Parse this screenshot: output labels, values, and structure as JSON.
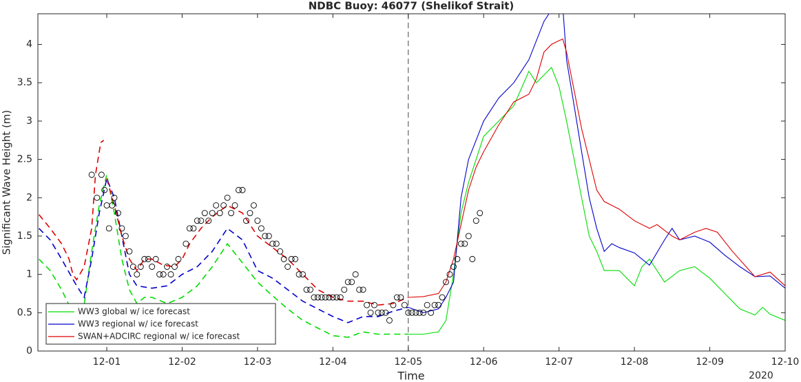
{
  "chart_data": {
    "type": "line",
    "title": "NDBC Buoy: 46077 (Shelikof Strait)",
    "x_label": "Time",
    "y_label": "Significant Wave Height (m)",
    "year_label": "2020",
    "xlim": [
      -0.914,
      9
    ],
    "ylim": [
      0,
      4.4
    ],
    "xticks": [
      {
        "value": 0,
        "label": "12-01"
      },
      {
        "value": 1,
        "label": "12-02"
      },
      {
        "value": 2,
        "label": "12-03"
      },
      {
        "value": 3,
        "label": "12-04"
      },
      {
        "value": 4,
        "label": "12-05"
      },
      {
        "value": 5,
        "label": "12-06"
      },
      {
        "value": 6,
        "label": "12-07"
      },
      {
        "value": 7,
        "label": "12-08"
      },
      {
        "value": 8,
        "label": "12-09"
      },
      {
        "value": 9,
        "label": "12-10"
      }
    ],
    "yticks": [
      0,
      0.5,
      1,
      1.5,
      2,
      2.5,
      3,
      3.5,
      4
    ],
    "vline": 4,
    "legend": "lower left",
    "series": [
      {
        "name": "WW3 global w/ ice forecast",
        "color": "#00dd00",
        "x": [
          -0.9,
          -0.75,
          -0.6,
          -0.5,
          -0.3,
          -0.2,
          -0.1,
          0.0,
          0.1,
          0.2,
          0.3,
          0.4,
          0.5,
          0.6,
          0.8,
          1.0,
          1.2,
          1.4,
          1.6,
          1.8,
          2.0,
          2.2,
          2.4,
          2.6,
          2.8,
          3.0,
          3.2,
          3.4,
          3.6,
          3.8,
          4.0,
          4.2,
          4.4,
          4.5,
          4.6,
          4.7,
          4.8,
          5.0,
          5.2,
          5.4,
          5.6,
          5.7,
          5.9,
          6.0,
          6.1,
          6.2,
          6.3,
          6.4,
          6.5,
          6.6,
          6.8,
          7.0,
          7.1,
          7.2,
          7.4,
          7.6,
          7.8,
          8.0,
          8.2,
          8.4,
          8.6,
          8.7,
          8.8,
          9.0
        ],
        "values": [
          1.2,
          1.05,
          0.8,
          0.6,
          0.6,
          1.3,
          1.9,
          2.3,
          1.8,
          1.2,
          0.8,
          0.62,
          0.7,
          0.7,
          0.62,
          0.7,
          0.85,
          1.1,
          1.4,
          1.15,
          0.9,
          0.72,
          0.55,
          0.4,
          0.3,
          0.2,
          0.18,
          0.25,
          0.22,
          0.22,
          0.22,
          0.22,
          0.25,
          0.4,
          1.0,
          1.8,
          2.2,
          2.8,
          3.0,
          3.2,
          3.65,
          3.5,
          3.7,
          3.45,
          3.0,
          2.5,
          2.0,
          1.5,
          1.3,
          1.05,
          1.05,
          0.85,
          1.1,
          1.2,
          0.9,
          1.05,
          1.1,
          0.95,
          0.75,
          0.55,
          0.47,
          0.57,
          0.48,
          0.4
        ]
      },
      {
        "name": "WW3 regional w/ ice forecast",
        "color": "#0000cc",
        "x": [
          -0.9,
          -0.75,
          -0.6,
          -0.4,
          -0.3,
          -0.2,
          -0.1,
          0.0,
          0.1,
          0.2,
          0.3,
          0.4,
          0.6,
          0.8,
          1.0,
          1.2,
          1.4,
          1.6,
          1.8,
          2.0,
          2.2,
          2.4,
          2.6,
          2.8,
          3.0,
          3.2,
          3.4,
          3.6,
          3.8,
          4.0,
          4.2,
          4.4,
          4.5,
          4.6,
          4.7,
          4.8,
          5.0,
          5.2,
          5.4,
          5.6,
          5.8,
          6.0,
          6.05,
          6.1,
          6.2,
          6.3,
          6.4,
          6.5,
          6.6,
          6.7,
          6.8,
          7.0,
          7.2,
          7.4,
          7.5,
          7.6,
          7.8,
          8.0,
          8.2,
          8.4,
          8.6,
          8.8,
          9.0
        ],
        "values": [
          1.6,
          1.45,
          1.2,
          0.85,
          0.7,
          1.2,
          1.8,
          2.25,
          2.0,
          1.5,
          1.0,
          0.85,
          0.82,
          0.85,
          1.0,
          1.1,
          1.3,
          1.6,
          1.45,
          1.05,
          0.95,
          0.8,
          0.65,
          0.55,
          0.45,
          0.37,
          0.45,
          0.45,
          0.52,
          0.57,
          0.5,
          0.55,
          0.7,
          0.9,
          2.0,
          2.5,
          3.0,
          3.3,
          3.5,
          3.8,
          4.3,
          4.6,
          4.5,
          3.8,
          3.2,
          2.6,
          2.0,
          1.6,
          1.3,
          1.4,
          1.35,
          1.28,
          1.12,
          1.45,
          1.6,
          1.45,
          1.5,
          1.42,
          1.25,
          1.1,
          0.97,
          0.98,
          0.82
        ]
      },
      {
        "name": "SWAN+ADCIRC regional w/ ice forecast",
        "color": "#dd0000",
        "x": [
          -0.9,
          -0.75,
          -0.6,
          -0.5,
          -0.45,
          -0.4,
          -0.3,
          -0.2,
          -0.15,
          -0.08,
          -0.04,
          -0.02,
          0.0,
          0.1,
          0.2,
          0.3,
          0.4,
          0.5,
          0.6,
          0.75,
          0.9,
          1.0,
          1.1,
          1.25,
          1.4,
          1.6,
          1.8,
          2.0,
          2.2,
          2.4,
          2.6,
          2.8,
          3.0,
          3.2,
          3.4,
          3.6,
          3.8,
          4.0,
          4.2,
          4.4,
          4.5,
          4.6,
          4.7,
          4.8,
          4.9,
          5.0,
          5.2,
          5.4,
          5.6,
          5.7,
          5.8,
          5.9,
          6.0,
          6.05,
          6.1,
          6.2,
          6.3,
          6.4,
          6.5,
          6.6,
          6.8,
          7.0,
          7.2,
          7.3,
          7.5,
          7.6,
          7.8,
          7.95,
          8.1,
          8.3,
          8.6,
          8.8,
          9.0
        ],
        "values": [
          1.78,
          1.6,
          1.4,
          1.2,
          1.0,
          0.93,
          1.1,
          1.6,
          2.3,
          2.72,
          2.75,
          null,
          2.25,
          1.9,
          1.5,
          1.2,
          1.05,
          1.2,
          1.2,
          1.12,
          1.1,
          1.2,
          1.4,
          1.6,
          1.75,
          1.9,
          1.8,
          1.5,
          1.35,
          1.2,
          1.0,
          0.8,
          0.7,
          0.65,
          0.65,
          0.6,
          0.62,
          0.7,
          0.71,
          0.75,
          0.9,
          1.2,
          1.65,
          2.1,
          2.4,
          2.6,
          2.95,
          3.25,
          3.35,
          3.55,
          3.9,
          4.0,
          4.05,
          4.07,
          3.9,
          3.4,
          2.9,
          2.5,
          2.1,
          1.95,
          1.85,
          1.7,
          1.6,
          1.65,
          1.5,
          1.45,
          1.55,
          1.6,
          1.55,
          1.3,
          0.97,
          1.03,
          0.85
        ]
      }
    ],
    "observations": {
      "color": "#000000",
      "x": [
        -0.2,
        -0.13,
        -0.07,
        -0.03,
        0.0,
        0.03,
        0.07,
        0.1,
        0.15,
        0.2,
        0.25,
        0.3,
        0.35,
        0.4,
        0.45,
        0.5,
        0.55,
        0.6,
        0.65,
        0.7,
        0.75,
        0.8,
        0.85,
        0.9,
        0.95,
        1.05,
        1.1,
        1.15,
        1.2,
        1.25,
        1.3,
        1.35,
        1.4,
        1.45,
        1.5,
        1.55,
        1.6,
        1.65,
        1.7,
        1.75,
        1.8,
        1.85,
        1.9,
        1.95,
        2.0,
        2.05,
        2.1,
        2.15,
        2.2,
        2.25,
        2.3,
        2.35,
        2.4,
        2.45,
        2.5,
        2.55,
        2.6,
        2.65,
        2.7,
        2.75,
        2.8,
        2.85,
        2.9,
        2.95,
        3.0,
        3.05,
        3.1,
        3.15,
        3.2,
        3.25,
        3.3,
        3.35,
        3.4,
        3.45,
        3.5,
        3.55,
        3.6,
        3.65,
        3.7,
        3.75,
        3.8,
        3.85,
        3.9,
        3.95,
        4.0,
        4.05,
        4.1,
        4.15,
        4.2,
        4.25,
        4.3,
        4.35,
        4.4,
        4.45,
        4.5,
        4.55,
        4.6,
        4.65,
        4.7,
        4.75,
        4.8,
        4.85,
        4.9,
        4.95
      ],
      "values": [
        2.3,
        2.0,
        2.3,
        2.1,
        1.9,
        1.6,
        1.9,
        2.0,
        1.8,
        1.6,
        1.5,
        1.3,
        1.1,
        1.0,
        1.1,
        1.2,
        1.2,
        1.1,
        1.2,
        1.0,
        1.0,
        1.1,
        1.0,
        1.1,
        1.2,
        1.4,
        1.6,
        1.6,
        1.7,
        1.7,
        1.8,
        1.7,
        1.8,
        1.9,
        1.8,
        1.9,
        2.0,
        1.8,
        1.9,
        2.1,
        2.1,
        1.7,
        1.8,
        1.9,
        1.7,
        1.6,
        1.5,
        1.5,
        1.4,
        1.4,
        1.3,
        1.2,
        1.1,
        1.2,
        1.2,
        1.0,
        1.0,
        0.8,
        0.8,
        0.7,
        0.7,
        0.7,
        0.7,
        0.7,
        0.7,
        0.7,
        0.7,
        0.8,
        0.9,
        0.9,
        1.0,
        0.8,
        0.8,
        0.6,
        0.5,
        0.6,
        0.5,
        0.5,
        0.5,
        0.4,
        0.6,
        0.7,
        0.7,
        0.6,
        0.5,
        0.5,
        0.5,
        0.5,
        0.5,
        0.6,
        0.5,
        0.6,
        0.6,
        0.7,
        0.9,
        1.0,
        1.1,
        1.2,
        1.4,
        1.4,
        1.5,
        1.2,
        1.7,
        1.8
      ]
    }
  }
}
